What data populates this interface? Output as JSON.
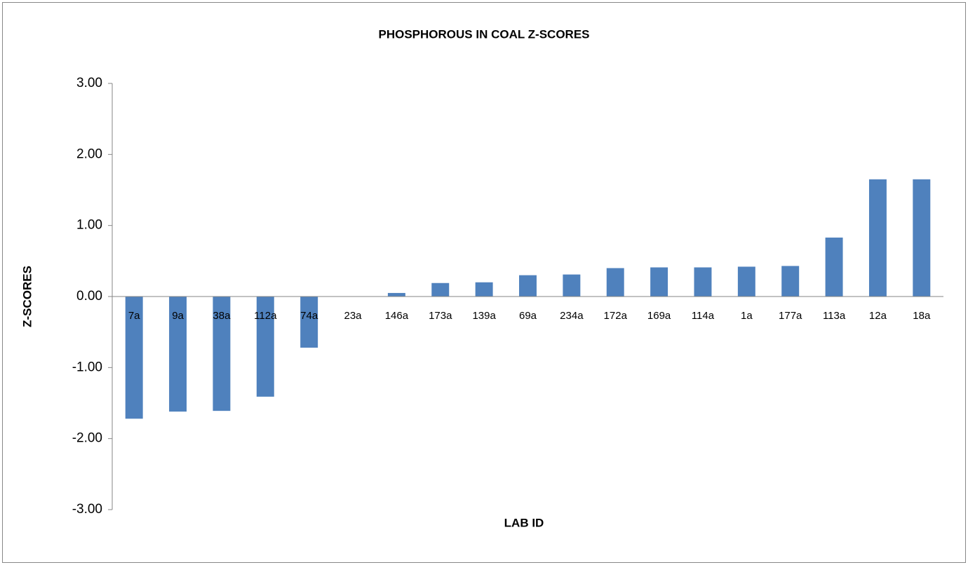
{
  "chart_data": {
    "type": "bar",
    "title": "PHOSPHOROUS IN COAL Z-SCORES",
    "x_label": "LAB ID",
    "y_label": "Z-SCORES",
    "categories": [
      "7a",
      "9a",
      "38a",
      "112a",
      "74a",
      "23a",
      "146a",
      "173a",
      "139a",
      "69a",
      "234a",
      "172a",
      "169a",
      "114a",
      "1a",
      "177a",
      "113a",
      "12a",
      "18a"
    ],
    "values": [
      -1.72,
      -1.62,
      -1.61,
      -1.41,
      -0.72,
      0,
      0.05,
      0.19,
      0.2,
      0.3,
      0.31,
      0.4,
      0.41,
      0.41,
      0.42,
      0.43,
      0.83,
      1.65,
      1.65
    ],
    "color": "#4f81bd",
    "ylim": [
      -3,
      3
    ],
    "yticks": [
      {
        "value": -3,
        "label": "-3.00"
      },
      {
        "value": -2,
        "label": "-2.00"
      },
      {
        "value": -1,
        "label": "-1.00"
      },
      {
        "value": 0,
        "label": "0.00"
      },
      {
        "value": 1,
        "label": "1.00"
      },
      {
        "value": 2,
        "label": "2.00"
      },
      {
        "value": 3,
        "label": "3.00"
      }
    ],
    "grid": false
  }
}
